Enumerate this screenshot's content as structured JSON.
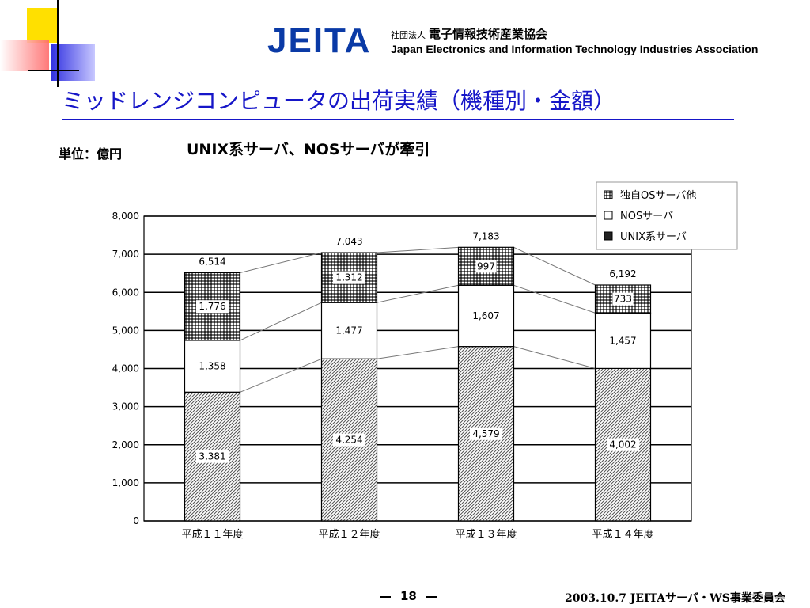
{
  "header": {
    "logo_text": "JEITA",
    "org_ja_prefix": "社団法人",
    "org_ja_name": "電子情報技術産業協会",
    "org_en_name": "Japan Electronics and Information Technology Industries Association"
  },
  "slide": {
    "title": "ミッドレンジコンピュータの出荷実績（機種別・金額）",
    "unit_label": "単位：億円",
    "subtitle": "UNIX系サーバ、NOSサーバが牽引"
  },
  "footer": {
    "page_number": "18",
    "text": "2003.10.7  JEITAサーバ・WS事業委員会"
  },
  "chart_data": {
    "type": "bar",
    "stacked": true,
    "categories": [
      "平成１１年度",
      "平成１２年度",
      "平成１３年度",
      "平成１４年度"
    ],
    "series": [
      {
        "name": "UNIX系サーバ",
        "values": [
          3381,
          4254,
          4579,
          4002
        ],
        "pattern": "hatch"
      },
      {
        "name": "NOSサーバ",
        "values": [
          1358,
          1477,
          1607,
          1457
        ],
        "pattern": "white"
      },
      {
        "name": "独自OSサーバ他",
        "values": [
          1776,
          1312,
          997,
          733
        ],
        "pattern": "dots"
      }
    ],
    "value_labels": [
      [
        "3,381",
        "4,254",
        "4,579",
        "4,002"
      ],
      [
        "1,358",
        "1,477",
        "1,607",
        "1,457"
      ],
      [
        "1,776",
        "1,312",
        "997",
        "733"
      ]
    ],
    "totals": [
      6514,
      7043,
      7183,
      6192
    ],
    "total_labels": [
      "6,514",
      "7,043",
      "7,183",
      "6,192"
    ],
    "ylim": [
      0,
      8000
    ],
    "yticks": [
      0,
      1000,
      2000,
      3000,
      4000,
      5000,
      6000,
      7000,
      8000
    ],
    "ytick_labels": [
      "0",
      "1,000",
      "2,000",
      "3,000",
      "4,000",
      "5,000",
      "6,000",
      "7,000",
      "8,000"
    ],
    "grid": true,
    "legend_position": "top-right",
    "legend_order": [
      "独自OSサーバ他",
      "NOSサーバ",
      "UNIX系サーバ"
    ],
    "connector_lines": true
  }
}
